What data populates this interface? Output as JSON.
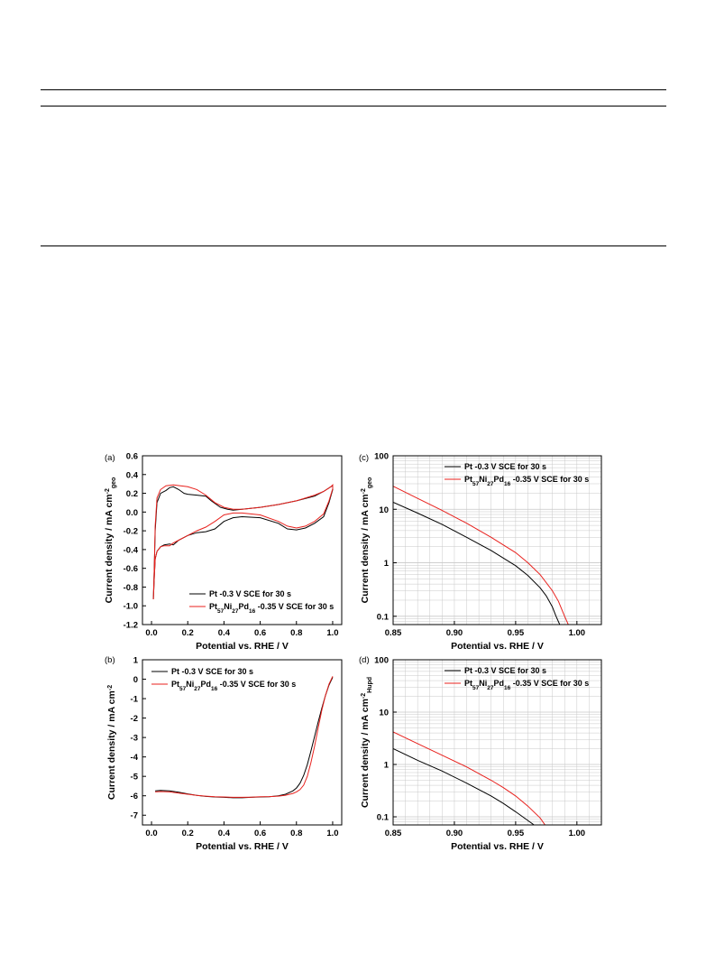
{
  "colors": {
    "pt": "#000000",
    "ptnipd": "#e8211d",
    "grid": "#c8c8c8"
  },
  "chart_data": [
    {
      "panel": "(a)",
      "type": "line",
      "xlabel": "Potential vs. RHE / V",
      "ylabel": "Current density / mA cm",
      "ylabel_sup": "-2",
      "ylabel_sub": "geo",
      "xlim": [
        -0.05,
        1.05
      ],
      "ylim": [
        -1.2,
        0.6
      ],
      "xticks": [
        0.0,
        0.2,
        0.4,
        0.6,
        0.8,
        1.0
      ],
      "yticks": [
        -1.2,
        -1.0,
        -0.8,
        -0.6,
        -0.4,
        -0.2,
        0.0,
        0.2,
        0.4,
        0.6
      ],
      "xtick_labels": [
        "0.0",
        "0.2",
        "0.4",
        "0.6",
        "0.8",
        "1.0"
      ],
      "ytick_labels": [
        "-1.2",
        "-1.0",
        "-0.8",
        "-0.6",
        "-0.4",
        "-0.2",
        "0.0",
        "0.2",
        "0.4",
        "0.6"
      ],
      "grid": false,
      "legend_position": "bottom-right",
      "series": [
        {
          "name": "Pt -0.3 V SCE for 30 s",
          "color_key": "pt",
          "x": [
            0.01,
            0.015,
            0.02,
            0.03,
            0.05,
            0.08,
            0.1,
            0.12,
            0.15,
            0.18,
            0.2,
            0.25,
            0.3,
            0.33,
            0.38,
            0.42,
            0.45,
            0.5,
            0.6,
            0.7,
            0.8,
            0.9,
            0.95,
            0.99,
            1.0,
            1.0,
            0.98,
            0.95,
            0.9,
            0.85,
            0.8,
            0.75,
            0.7,
            0.6,
            0.5,
            0.45,
            0.4,
            0.35,
            0.3,
            0.25,
            0.2,
            0.15,
            0.12,
            0.1,
            0.07,
            0.05,
            0.03,
            0.02,
            0.015,
            0.01
          ],
          "y": [
            -0.93,
            -0.6,
            -0.2,
            0.1,
            0.2,
            0.23,
            0.26,
            0.27,
            0.24,
            0.2,
            0.19,
            0.18,
            0.17,
            0.12,
            0.05,
            0.03,
            0.02,
            0.03,
            0.05,
            0.08,
            0.12,
            0.17,
            0.22,
            0.27,
            0.28,
            0.24,
            0.1,
            -0.05,
            -0.12,
            -0.17,
            -0.19,
            -0.18,
            -0.12,
            -0.06,
            -0.05,
            -0.06,
            -0.1,
            -0.18,
            -0.21,
            -0.22,
            -0.25,
            -0.3,
            -0.35,
            -0.34,
            -0.35,
            -0.37,
            -0.42,
            -0.5,
            -0.7,
            -0.93
          ]
        },
        {
          "name": "Pt57Ni27Pd16 -0.35 V SCE for 30 s",
          "color_key": "ptnipd",
          "x": [
            0.01,
            0.015,
            0.02,
            0.03,
            0.05,
            0.08,
            0.12,
            0.16,
            0.2,
            0.25,
            0.3,
            0.35,
            0.4,
            0.45,
            0.5,
            0.6,
            0.7,
            0.8,
            0.9,
            0.95,
            0.99,
            1.0,
            1.0,
            0.98,
            0.95,
            0.9,
            0.85,
            0.8,
            0.75,
            0.7,
            0.6,
            0.5,
            0.45,
            0.4,
            0.35,
            0.3,
            0.25,
            0.2,
            0.15,
            0.12,
            0.1,
            0.07,
            0.05,
            0.03,
            0.02,
            0.015,
            0.01
          ],
          "y": [
            -0.93,
            -0.6,
            -0.15,
            0.15,
            0.24,
            0.28,
            0.29,
            0.28,
            0.27,
            0.24,
            0.18,
            0.1,
            0.05,
            0.03,
            0.03,
            0.05,
            0.08,
            0.12,
            0.18,
            0.22,
            0.27,
            0.29,
            0.25,
            0.12,
            -0.02,
            -0.1,
            -0.15,
            -0.17,
            -0.15,
            -0.1,
            -0.03,
            -0.01,
            -0.01,
            -0.03,
            -0.1,
            -0.16,
            -0.2,
            -0.25,
            -0.3,
            -0.33,
            -0.36,
            -0.36,
            -0.37,
            -0.42,
            -0.5,
            -0.7,
            -0.93
          ]
        }
      ]
    },
    {
      "panel": "(b)",
      "type": "line",
      "xlabel": "Potential vs. RHE / V",
      "ylabel": "Current density / mA cm",
      "ylabel_sup": "-2",
      "ylabel_sub": "",
      "xlim": [
        -0.05,
        1.05
      ],
      "ylim": [
        -7.5,
        1
      ],
      "xticks": [
        0.0,
        0.2,
        0.4,
        0.6,
        0.8,
        1.0
      ],
      "yticks": [
        -7,
        -6,
        -5,
        -4,
        -3,
        -2,
        -1,
        0,
        1
      ],
      "xtick_labels": [
        "0.0",
        "0.2",
        "0.4",
        "0.6",
        "0.8",
        "1.0"
      ],
      "ytick_labels": [
        "-7",
        "-6",
        "-5",
        "-4",
        "-3",
        "-2",
        "-1",
        "0",
        "1"
      ],
      "grid": false,
      "legend_position": "top-left",
      "series": [
        {
          "name": "Pt -0.3 V SCE for 30 s",
          "color_key": "pt",
          "x": [
            0.02,
            0.05,
            0.1,
            0.15,
            0.2,
            0.25,
            0.3,
            0.35,
            0.4,
            0.45,
            0.5,
            0.55,
            0.6,
            0.65,
            0.7,
            0.74,
            0.78,
            0.8,
            0.82,
            0.84,
            0.86,
            0.88,
            0.9,
            0.92,
            0.94,
            0.96,
            0.98,
            1.0
          ],
          "y": [
            -5.75,
            -5.72,
            -5.75,
            -5.82,
            -5.9,
            -5.98,
            -6.03,
            -6.06,
            -6.08,
            -6.1,
            -6.1,
            -6.08,
            -6.06,
            -6.05,
            -6.0,
            -5.92,
            -5.75,
            -5.6,
            -5.35,
            -4.95,
            -4.4,
            -3.7,
            -2.95,
            -2.2,
            -1.5,
            -0.85,
            -0.3,
            0.1
          ]
        },
        {
          "name": "Pt57Ni27Pd16 -0.35 V SCE for 30 s",
          "color_key": "ptnipd",
          "x": [
            0.02,
            0.05,
            0.1,
            0.15,
            0.2,
            0.25,
            0.3,
            0.35,
            0.4,
            0.45,
            0.5,
            0.55,
            0.6,
            0.65,
            0.7,
            0.74,
            0.78,
            0.8,
            0.82,
            0.84,
            0.86,
            0.88,
            0.9,
            0.92,
            0.94,
            0.96,
            0.98,
            1.0
          ],
          "y": [
            -5.8,
            -5.78,
            -5.8,
            -5.86,
            -5.92,
            -5.98,
            -6.02,
            -6.05,
            -6.06,
            -6.08,
            -6.08,
            -6.07,
            -6.05,
            -6.04,
            -6.02,
            -5.97,
            -5.88,
            -5.8,
            -5.68,
            -5.45,
            -5.0,
            -4.3,
            -3.45,
            -2.5,
            -1.6,
            -0.85,
            -0.25,
            0.15
          ]
        }
      ]
    },
    {
      "panel": "(c)",
      "type": "line",
      "xlabel": "Potential vs. RHE / V",
      "ylabel": "Current density / mA cm",
      "ylabel_sup": "-2",
      "ylabel_sub": "geo",
      "xlim": [
        0.85,
        1.02
      ],
      "ylim": [
        0.07,
        100
      ],
      "yscale": "log",
      "xticks": [
        0.85,
        0.9,
        0.95,
        1.0
      ],
      "yticks": [
        0.1,
        1,
        10,
        100
      ],
      "xtick_labels": [
        "0.85",
        "0.90",
        "0.95",
        "1.00"
      ],
      "ytick_labels": [
        "0.1",
        "1",
        "10",
        "100"
      ],
      "grid": true,
      "legend_position": "top-right",
      "series": [
        {
          "name": "Pt -0.3 V SCE for 30 s",
          "color_key": "pt",
          "x": [
            0.85,
            0.87,
            0.89,
            0.91,
            0.93,
            0.95,
            0.96,
            0.97,
            0.975,
            0.98,
            0.983,
            0.986
          ],
          "y": [
            13.5,
            8.5,
            5.2,
            3.0,
            1.7,
            0.88,
            0.58,
            0.34,
            0.24,
            0.15,
            0.1,
            0.07
          ]
        },
        {
          "name": "Pt57Ni27Pd16 -0.35 V SCE for 30 s",
          "color_key": "ptnipd",
          "x": [
            0.85,
            0.87,
            0.89,
            0.91,
            0.93,
            0.95,
            0.96,
            0.97,
            0.98,
            0.985,
            0.99,
            0.993
          ],
          "y": [
            27,
            16,
            9.5,
            5.5,
            3.0,
            1.55,
            1.0,
            0.6,
            0.3,
            0.19,
            0.1,
            0.07
          ]
        }
      ]
    },
    {
      "panel": "(d)",
      "type": "line",
      "xlabel": "Potential vs. RHE / V",
      "ylabel": "Current density / mA cm",
      "ylabel_sup": "-2",
      "ylabel_sub": "Hupd",
      "xlim": [
        0.85,
        1.02
      ],
      "ylim": [
        0.07,
        100
      ],
      "yscale": "log",
      "xticks": [
        0.85,
        0.9,
        0.95,
        1.0
      ],
      "yticks": [
        0.1,
        1,
        10,
        100
      ],
      "xtick_labels": [
        "0.85",
        "0.90",
        "0.95",
        "1.00"
      ],
      "ytick_labels": [
        "0.1",
        "1",
        "10",
        "100"
      ],
      "grid": true,
      "legend_position": "top-right",
      "series": [
        {
          "name": "Pt -0.3 V SCE for 30 s",
          "color_key": "pt",
          "x": [
            0.85,
            0.87,
            0.89,
            0.91,
            0.93,
            0.94,
            0.95,
            0.96,
            0.965
          ],
          "y": [
            2.0,
            1.2,
            0.75,
            0.44,
            0.25,
            0.18,
            0.125,
            0.085,
            0.07
          ]
        },
        {
          "name": "Pt57Ni27Pd16 -0.35 V SCE for 30 s",
          "color_key": "ptnipd",
          "x": [
            0.85,
            0.87,
            0.89,
            0.91,
            0.93,
            0.94,
            0.95,
            0.96,
            0.97,
            0.974
          ],
          "y": [
            4.2,
            2.5,
            1.5,
            0.9,
            0.5,
            0.36,
            0.25,
            0.16,
            0.095,
            0.07
          ]
        }
      ]
    }
  ]
}
